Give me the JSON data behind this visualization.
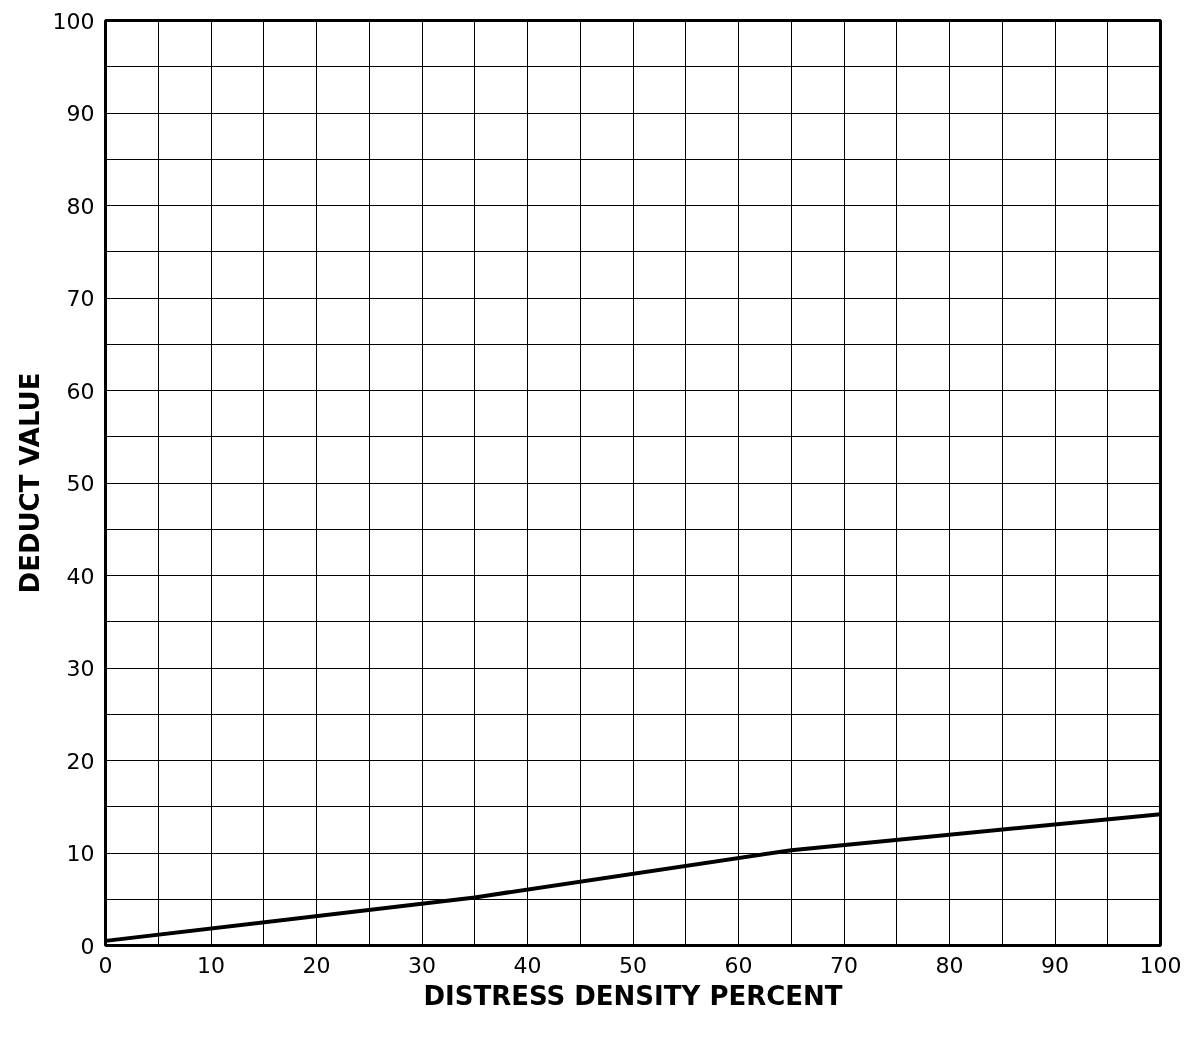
{
  "chart_data": {
    "type": "line",
    "xlabel": "DISTRESS DENSITY PERCENT",
    "ylabel": "DEDUCT VALUE",
    "x": [
      0,
      35,
      65,
      100
    ],
    "series": [
      {
        "color": "#000000",
        "values": [
          0.5,
          5.2,
          10.3,
          14.2
        ]
      }
    ],
    "xlim": [
      0,
      100
    ],
    "ylim": [
      0,
      100
    ],
    "xticks": [
      0,
      {
        "value": 5,
        "label": null
      },
      10,
      {
        "value": 15,
        "label": null
      },
      20,
      {
        "value": 25,
        "label": null
      },
      30,
      {
        "value": 35,
        "label": null
      },
      40,
      {
        "value": 45,
        "label": null
      },
      50,
      {
        "value": 55,
        "label": null
      },
      60,
      {
        "value": 65,
        "label": null
      },
      70,
      {
        "value": 75,
        "label": null
      },
      80,
      {
        "value": 85,
        "label": null
      },
      90,
      {
        "value": 95,
        "label": null
      },
      100
    ],
    "yticks": [
      0,
      {
        "value": 5,
        "label": null
      },
      10,
      {
        "value": 15,
        "label": null
      },
      20,
      {
        "value": 25,
        "label": null
      },
      30,
      {
        "value": 35,
        "label": null
      },
      40,
      {
        "value": 45,
        "label": null
      },
      50,
      {
        "value": 55,
        "label": null
      },
      60,
      {
        "value": 65,
        "label": null
      },
      70,
      {
        "value": 75,
        "label": null
      },
      80,
      {
        "value": 85,
        "label": null
      },
      90,
      {
        "value": 95,
        "label": null
      },
      100
    ],
    "grid": true,
    "marker": "none",
    "line_style": "solid"
  }
}
